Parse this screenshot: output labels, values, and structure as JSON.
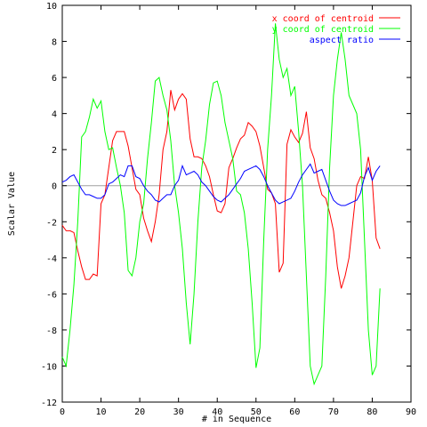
{
  "chart_data": {
    "type": "line",
    "title": "",
    "xlabel": "# in Sequence",
    "ylabel": "Scalar Value",
    "xlim": [
      0,
      90
    ],
    "ylim": [
      -12,
      10
    ],
    "xticks": [
      0,
      10,
      20,
      30,
      40,
      50,
      60,
      70,
      80,
      90
    ],
    "yticks": [
      -12,
      -10,
      -8,
      -6,
      -4,
      -2,
      0,
      2,
      4,
      6,
      8,
      10
    ],
    "zero_line": true,
    "grid": false,
    "legend_position": "top-right",
    "series": [
      {
        "name": "x coord of centroid",
        "color": "#ff0000",
        "x": [
          0,
          1,
          2,
          3,
          4,
          5,
          6,
          7,
          8,
          9,
          10,
          11,
          12,
          13,
          14,
          15,
          16,
          17,
          18,
          19,
          20,
          21,
          22,
          23,
          24,
          25,
          26,
          27,
          28,
          29,
          30,
          31,
          32,
          33,
          34,
          35,
          36,
          37,
          38,
          39,
          40,
          41,
          42,
          43,
          44,
          45,
          46,
          47,
          48,
          49,
          50,
          51,
          52,
          53,
          54,
          55,
          56,
          57,
          58,
          59,
          60,
          61,
          62,
          63,
          64,
          65,
          66,
          67,
          68,
          69,
          70,
          71,
          72,
          73,
          74,
          75,
          76,
          77,
          78,
          79,
          80,
          81,
          82
        ],
        "y": [
          -2.2,
          -2.5,
          -2.5,
          -2.6,
          -3.6,
          -4.5,
          -5.2,
          -5.2,
          -4.9,
          -5.0,
          -1.0,
          -0.5,
          1.0,
          2.5,
          3.0,
          3.0,
          3.0,
          2.2,
          1.0,
          -0.2,
          -0.5,
          -1.8,
          -2.5,
          -3.1,
          -2.0,
          -0.5,
          2.0,
          3.0,
          5.3,
          4.2,
          4.8,
          5.1,
          4.8,
          2.6,
          1.6,
          1.6,
          1.5,
          1.1,
          0.5,
          -0.5,
          -1.4,
          -1.5,
          -1.0,
          1.0,
          1.5,
          2.1,
          2.6,
          2.8,
          3.5,
          3.3,
          3.0,
          2.2,
          1.0,
          -0.2,
          -0.4,
          -1.0,
          -4.8,
          -4.3,
          2.3,
          3.1,
          2.7,
          2.4,
          2.9,
          4.1,
          2.1,
          1.5,
          0.3,
          -0.5,
          -0.7,
          -1.5,
          -2.5,
          -4.5,
          -5.7,
          -5.0,
          -4.0,
          -2.0,
          0.0,
          0.5,
          0.4,
          1.6,
          0.3,
          -2.9,
          -3.5
        ]
      },
      {
        "name": "y coord of centroid",
        "color": "#00ff00",
        "x": [
          0,
          1,
          2,
          3,
          4,
          5,
          6,
          7,
          8,
          9,
          10,
          11,
          12,
          13,
          14,
          15,
          16,
          17,
          18,
          19,
          20,
          21,
          22,
          23,
          24,
          25,
          26,
          27,
          28,
          29,
          30,
          31,
          32,
          33,
          34,
          35,
          36,
          37,
          38,
          39,
          40,
          41,
          42,
          43,
          44,
          45,
          46,
          47,
          48,
          49,
          50,
          51,
          52,
          53,
          54,
          55,
          56,
          57,
          58,
          59,
          60,
          61,
          62,
          63,
          64,
          65,
          66,
          67,
          68,
          69,
          70,
          71,
          72,
          73,
          74,
          75,
          76,
          77,
          78,
          79,
          80,
          81,
          82
        ],
        "y": [
          -9.5,
          -10.0,
          -8.0,
          -5.5,
          -2.0,
          2.7,
          3.0,
          3.8,
          4.8,
          4.3,
          4.7,
          3.0,
          2.0,
          2.1,
          1.0,
          0.0,
          -1.5,
          -4.7,
          -5.0,
          -4.0,
          -2.0,
          -1.0,
          1.5,
          3.5,
          5.8,
          6.0,
          5.0,
          4.2,
          2.5,
          0.0,
          -1.5,
          -3.5,
          -6.5,
          -8.8,
          -6.0,
          -2.0,
          1.0,
          2.5,
          4.5,
          5.7,
          5.8,
          5.0,
          3.5,
          2.5,
          1.5,
          -0.3,
          -0.5,
          -1.5,
          -3.5,
          -6.5,
          -10.1,
          -9.0,
          -3.0,
          2.0,
          5.0,
          9.0,
          7.0,
          6.0,
          6.5,
          5.0,
          5.5,
          3.0,
          0.0,
          -5.0,
          -10.0,
          -11.0,
          -10.5,
          -10.0,
          -5.0,
          1.0,
          5.0,
          7.0,
          8.5,
          7.0,
          5.0,
          4.5,
          4.0,
          2.0,
          -3.0,
          -8.0,
          -10.5,
          -10.0,
          -5.7
        ]
      },
      {
        "name": "aspect ratio",
        "color": "#0000ff",
        "x": [
          0,
          1,
          2,
          3,
          4,
          5,
          6,
          7,
          8,
          9,
          10,
          11,
          12,
          13,
          14,
          15,
          16,
          17,
          18,
          19,
          20,
          21,
          22,
          23,
          24,
          25,
          26,
          27,
          28,
          29,
          30,
          31,
          32,
          33,
          34,
          35,
          36,
          37,
          38,
          39,
          40,
          41,
          42,
          43,
          44,
          45,
          46,
          47,
          48,
          49,
          50,
          51,
          52,
          53,
          54,
          55,
          56,
          57,
          58,
          59,
          60,
          61,
          62,
          63,
          64,
          65,
          66,
          67,
          68,
          69,
          70,
          71,
          72,
          73,
          74,
          75,
          76,
          77,
          78,
          79,
          80,
          81,
          82
        ],
        "y": [
          0.2,
          0.3,
          0.5,
          0.6,
          0.2,
          -0.2,
          -0.5,
          -0.5,
          -0.6,
          -0.7,
          -0.7,
          -0.5,
          0.1,
          0.2,
          0.4,
          0.6,
          0.5,
          1.1,
          1.1,
          0.5,
          0.4,
          0.0,
          -0.3,
          -0.5,
          -0.8,
          -0.9,
          -0.7,
          -0.5,
          -0.5,
          0.0,
          0.3,
          1.1,
          0.6,
          0.7,
          0.8,
          0.6,
          0.2,
          0.0,
          -0.3,
          -0.6,
          -0.8,
          -0.9,
          -0.7,
          -0.5,
          -0.2,
          0.1,
          0.4,
          0.8,
          0.9,
          1.0,
          1.1,
          0.9,
          0.5,
          0.0,
          -0.4,
          -0.8,
          -1.0,
          -0.9,
          -0.8,
          -0.7,
          -0.3,
          0.2,
          0.6,
          0.9,
          1.2,
          0.7,
          0.8,
          0.9,
          0.3,
          -0.3,
          -0.8,
          -1.0,
          -1.1,
          -1.1,
          -1.0,
          -0.9,
          -0.8,
          -0.4,
          0.5,
          1.0,
          0.3,
          0.8,
          1.1
        ]
      }
    ]
  }
}
